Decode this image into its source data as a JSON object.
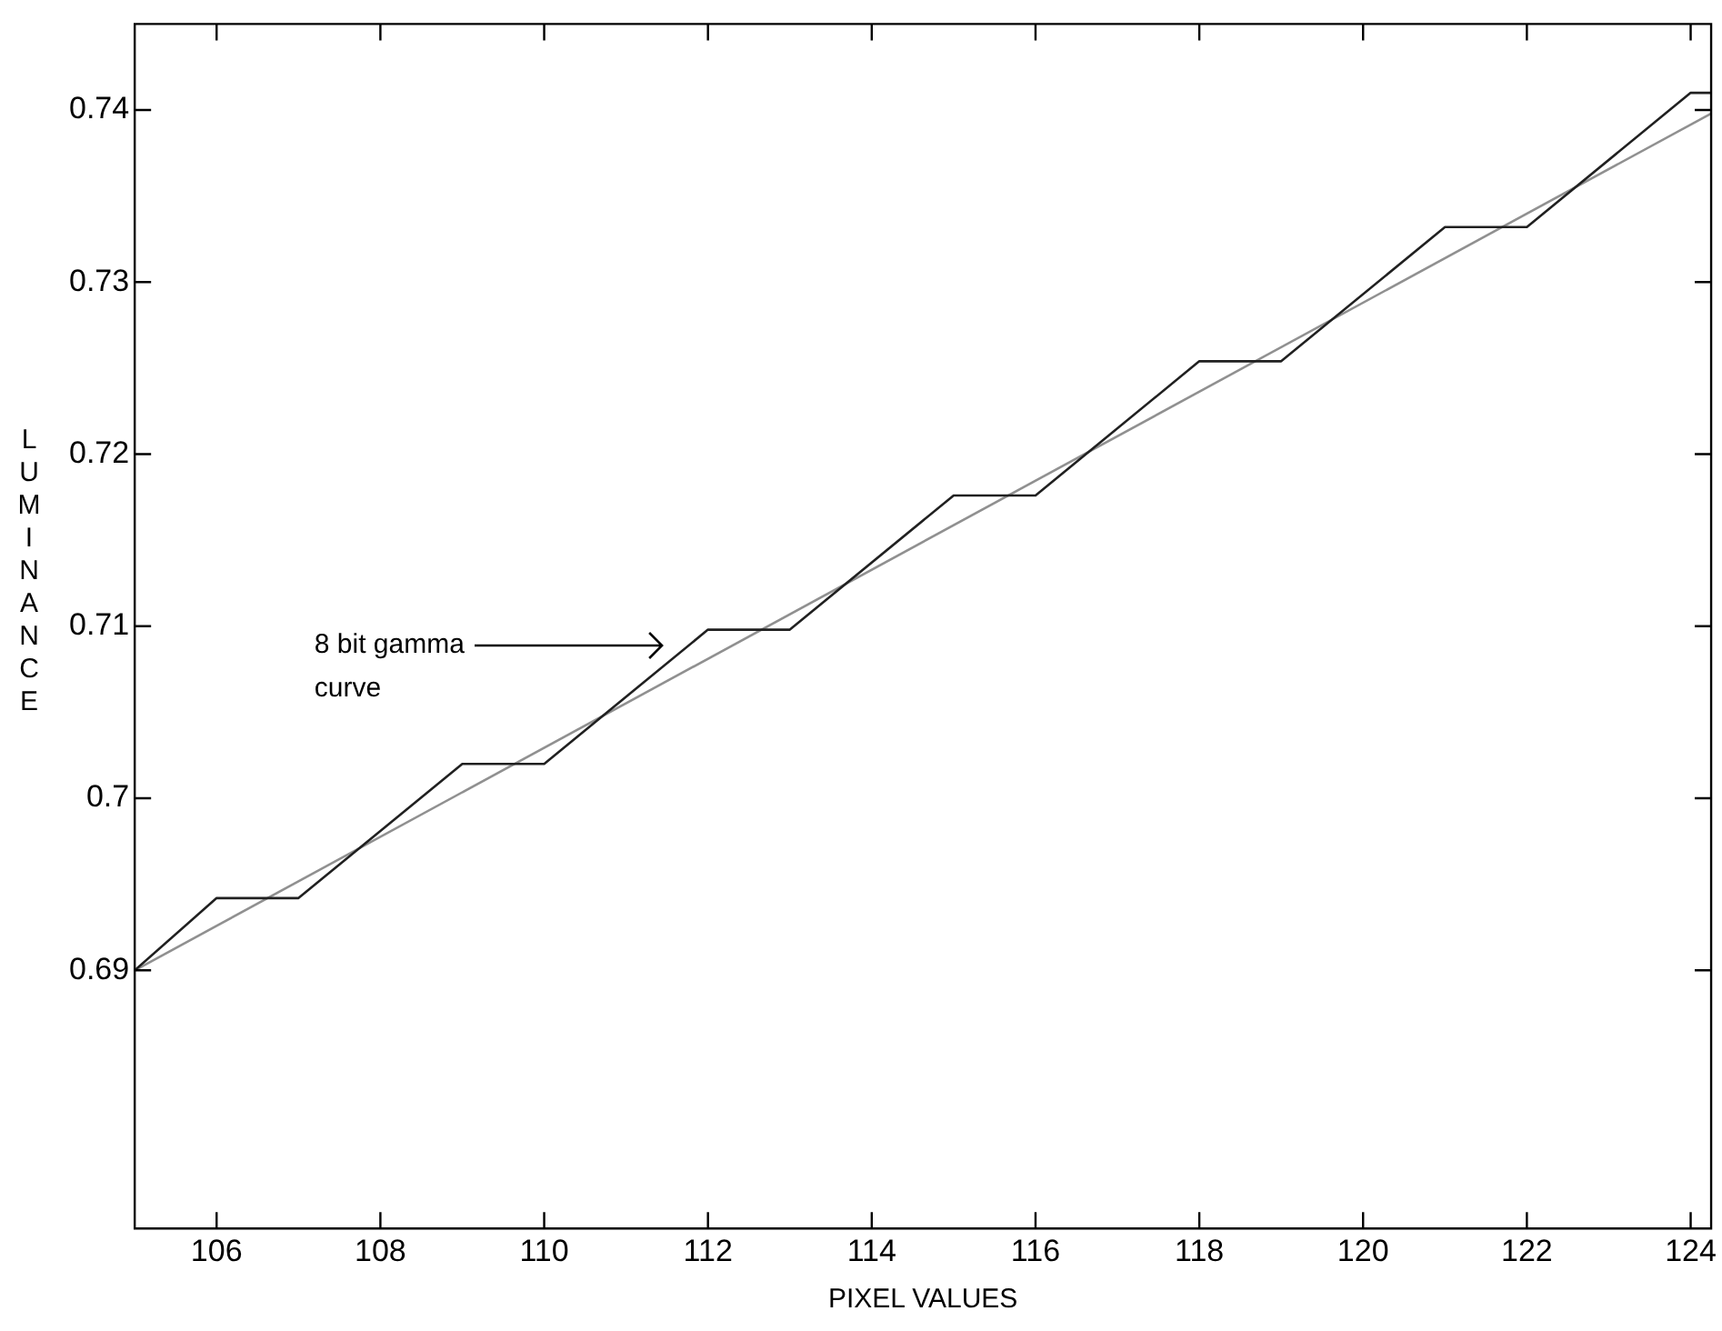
{
  "chart_data": {
    "type": "line",
    "xlabel": "PIXEL VALUES",
    "ylabel": "LUMINANCE",
    "xlim": [
      105,
      124.25
    ],
    "ylim": [
      0.675,
      0.745
    ],
    "xticks": [
      106,
      108,
      110,
      112,
      114,
      116,
      118,
      120,
      122,
      124
    ],
    "yticks": [
      0.69,
      0.7,
      0.71,
      0.72,
      0.73,
      0.74
    ],
    "series": [
      {
        "color": "#202020",
        "x": [
          105,
          106,
          107,
          109,
          110,
          112,
          113,
          115,
          116,
          118,
          119,
          121,
          122,
          124,
          124.25
        ],
        "values": [
          0.69,
          0.6942,
          0.6942,
          0.702,
          0.702,
          0.7098,
          0.7098,
          0.7176,
          0.7176,
          0.7254,
          0.7254,
          0.7332,
          0.7332,
          0.741,
          0.741
        ]
      },
      {
        "color": "#909090",
        "x": [
          105,
          124.25
        ],
        "values": [
          0.69,
          0.7398
        ]
      }
    ],
    "annotations": [
      "8 bit gamma curve"
    ],
    "grid": false,
    "legend": false,
    "marker": "none",
    "line_style": "solid"
  }
}
